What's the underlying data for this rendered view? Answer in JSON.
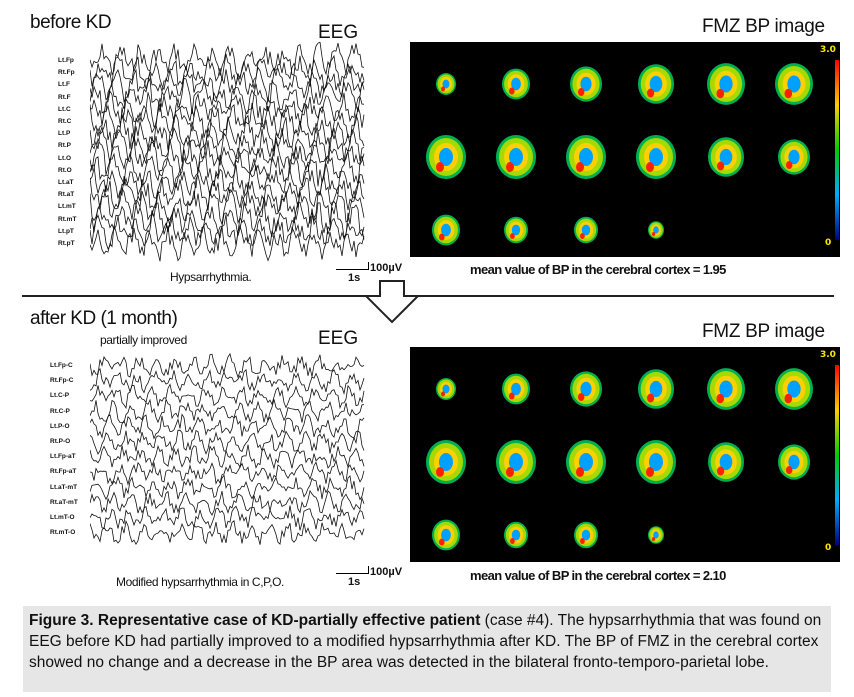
{
  "top": {
    "section_title": "before KD",
    "eeg_title": "EEG",
    "fmz_title": "FMZ BP image",
    "channels": [
      "Lt.Fp",
      "Rt.Fp",
      "Lt.F",
      "Rt.F",
      "Lt.C",
      "Rt.C",
      "Lt.P",
      "Rt.P",
      "Lt.O",
      "Rt.O",
      "Lt.aT",
      "Rt.aT",
      "Lt.mT",
      "Rt.mT",
      "Lt.pT",
      "Rt.pT"
    ],
    "eeg_caption": "Hypsarrhythmia.",
    "scale_time": "1s",
    "scale_volt": "100µV",
    "scale_max": "3.0",
    "scale_min": "0",
    "bp_text": "mean value of BP in the cerebral cortex = 1.95"
  },
  "bottom": {
    "section_title": "after KD (1 month)",
    "subtitle": "partially improved",
    "eeg_title": "EEG",
    "fmz_title": "FMZ BP image",
    "channels": [
      "Lt.Fp-C",
      "Rt.Fp-C",
      "Lt.C-P",
      "Rt.C-P",
      "Lt.P-O",
      "Rt.P-O",
      "Lt.Fp-aT",
      "Rt.Fp-aT",
      "Lt.aT-mT",
      "Rt.aT-mT",
      "Lt.mT-O",
      "Rt.mT-O"
    ],
    "eeg_caption": "Modified hypsarrhythmia in C,P,O.",
    "scale_time": "1s",
    "scale_volt": "100µV",
    "scale_max": "3.0",
    "scale_min": "0",
    "bp_text": "mean value of BP in the cerebral cortex = 2.10"
  },
  "caption": {
    "bold_part": "Figure 3. Representative case of KD-partially effective patient",
    "case_part": " (case #4)",
    "body": ". The hypsarrhythmia that was found on EEG before KD had partially improved to a modified hypsarrhythmia after KD. The BP of FMZ in the cerebral cortex showed no change and a decrease in the BP area was detected in the bilateral fronto-temporo-parietal lobe."
  },
  "colors": {
    "caption_bg": "#e6e6e6",
    "scale_label": "#ffe600",
    "colorbar_top": "#ff0000",
    "colorbar_bottom": "#000080"
  }
}
